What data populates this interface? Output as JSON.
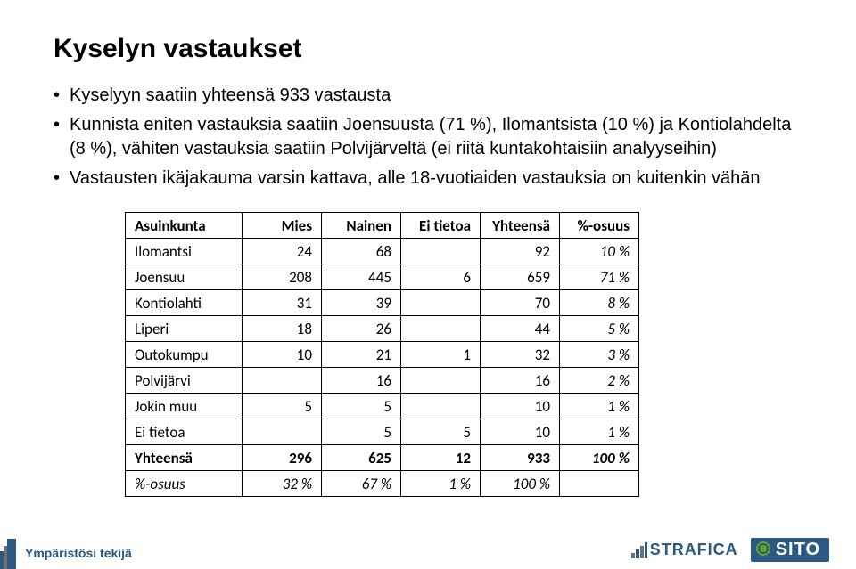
{
  "title": "Kyselyn vastaukset",
  "bullets": [
    "Kyselyyn saatiin yhteensä 933 vastausta",
    "Kunnista eniten vastauksia saatiin Joensuusta (71 %), Ilomantsista (10 %) ja Kontiolahdelta (8 %), vähiten vastauksia saatiin Polvijärveltä (ei riitä kuntakohtaisiin analyyseihin)",
    "Vastausten ikäjakauma varsin kattava, alle 18-vuotiaiden vastauksia on kuitenkin vähän"
  ],
  "table": {
    "columns": [
      "Asuinkunta",
      "Mies",
      "Nainen",
      "Ei tietoa",
      "Yhteensä",
      "%-osuus"
    ],
    "rows": [
      [
        "Ilomantsi",
        "24",
        "68",
        "",
        "92",
        "10 %"
      ],
      [
        "Joensuu",
        "208",
        "445",
        "6",
        "659",
        "71 %"
      ],
      [
        "Kontiolahti",
        "31",
        "39",
        "",
        "70",
        "8 %"
      ],
      [
        "Liperi",
        "18",
        "26",
        "",
        "44",
        "5 %"
      ],
      [
        "Outokumpu",
        "10",
        "21",
        "1",
        "32",
        "3 %"
      ],
      [
        "Polvijärvi",
        "",
        "16",
        "",
        "16",
        "2 %"
      ],
      [
        "Jokin muu",
        "5",
        "5",
        "",
        "10",
        "1 %"
      ],
      [
        "Ei tietoa",
        "",
        "5",
        "5",
        "10",
        "1 %"
      ]
    ],
    "totals": [
      "Yhteensä",
      "296",
      "625",
      "12",
      "933",
      "100 %"
    ],
    "pct": [
      "%-osuus",
      "32 %",
      "67 %",
      "1 %",
      "100 %",
      ""
    ]
  },
  "footer": {
    "tagline": "Ympäristösi tekijä",
    "logo1": "STRAFICA",
    "logo2": "SITO"
  },
  "colors": {
    "brand_blue": "#2a5a82",
    "brand_green": "#6aa329",
    "text": "#000000",
    "bg": "#ffffff",
    "border": "#000000"
  }
}
